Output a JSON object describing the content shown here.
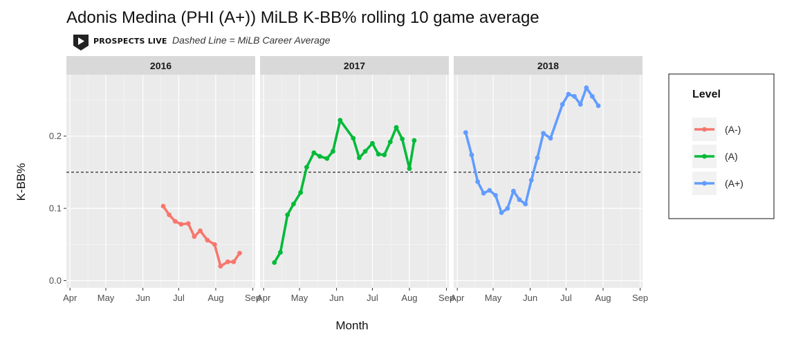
{
  "title": "Adonis Medina (PHI (A+)) MiLB K-BB% rolling 10 game average",
  "brand": {
    "name": "PROSPECTS LIVE",
    "icon": "play-shield-icon"
  },
  "subtitle": "Dashed Line = MiLB Career Average",
  "chart_data": {
    "type": "line",
    "xlabel": "Month",
    "ylabel": "K-BB%",
    "x_ticks": [
      "Apr",
      "May",
      "Jun",
      "Jul",
      "Aug",
      "Sep"
    ],
    "y_ticks": [
      "0.0",
      "0.1",
      "0.2"
    ],
    "ylim": [
      -0.01,
      0.285
    ],
    "xlim_days": [
      -3,
      155
    ],
    "grid": true,
    "reference_line": {
      "value": 0.15,
      "style": "dashed",
      "label": "MiLB Career Average"
    },
    "legend": {
      "title": "Level",
      "placement": "right"
    },
    "facets": [
      {
        "label": "2016",
        "series": [
          {
            "name": "(A-)",
            "color": "#F8766D",
            "points": [
              [
                "06-18",
                0.103
              ],
              [
                "06-23",
                0.091
              ],
              [
                "06-28",
                0.082
              ],
              [
                "07-03",
                0.078
              ],
              [
                "07-09",
                0.079
              ],
              [
                "07-14",
                0.061
              ],
              [
                "07-19",
                0.069
              ],
              [
                "07-25",
                0.056
              ],
              [
                "07-31",
                0.05
              ],
              [
                "08-05",
                0.02
              ],
              [
                "08-11",
                0.026
              ],
              [
                "08-16",
                0.026
              ],
              [
                "08-21",
                0.038
              ]
            ]
          }
        ]
      },
      {
        "label": "2017",
        "series": [
          {
            "name": "(A)",
            "color": "#00BA38",
            "points": [
              [
                "04-10",
                0.025
              ],
              [
                "04-15",
                0.039
              ],
              [
                "04-21",
                0.091
              ],
              [
                "04-26",
                0.106
              ],
              [
                "05-02",
                0.122
              ],
              [
                "05-07",
                0.157
              ],
              [
                "05-13",
                0.177
              ],
              [
                "05-18",
                0.172
              ],
              [
                "05-24",
                0.169
              ],
              [
                "05-29",
                0.179
              ],
              [
                "06-04",
                0.222
              ],
              [
                "06-15",
                0.197
              ],
              [
                "06-20",
                0.17
              ],
              [
                "06-25",
                0.179
              ],
              [
                "07-01",
                0.19
              ],
              [
                "07-06",
                0.175
              ],
              [
                "07-11",
                0.174
              ],
              [
                "07-16",
                0.192
              ],
              [
                "07-21",
                0.212
              ],
              [
                "07-26",
                0.196
              ],
              [
                "08-01",
                0.155
              ],
              [
                "08-05",
                0.194
              ]
            ]
          }
        ]
      },
      {
        "label": "2018",
        "series": [
          {
            "name": "(A+)",
            "color": "#619CFF",
            "points": [
              [
                "04-08",
                0.205
              ],
              [
                "04-13",
                0.174
              ],
              [
                "04-18",
                0.137
              ],
              [
                "04-23",
                0.121
              ],
              [
                "04-28",
                0.125
              ],
              [
                "05-03",
                0.118
              ],
              [
                "05-08",
                0.094
              ],
              [
                "05-13",
                0.1
              ],
              [
                "05-18",
                0.124
              ],
              [
                "05-23",
                0.112
              ],
              [
                "05-28",
                0.106
              ],
              [
                "06-02",
                0.139
              ],
              [
                "06-07",
                0.17
              ],
              [
                "06-12",
                0.204
              ],
              [
                "06-18",
                0.197
              ],
              [
                "06-28",
                0.244
              ],
              [
                "07-03",
                0.258
              ],
              [
                "07-08",
                0.255
              ],
              [
                "07-13",
                0.244
              ],
              [
                "07-18",
                0.267
              ],
              [
                "07-23",
                0.255
              ],
              [
                "07-28",
                0.242
              ]
            ]
          }
        ]
      }
    ]
  }
}
